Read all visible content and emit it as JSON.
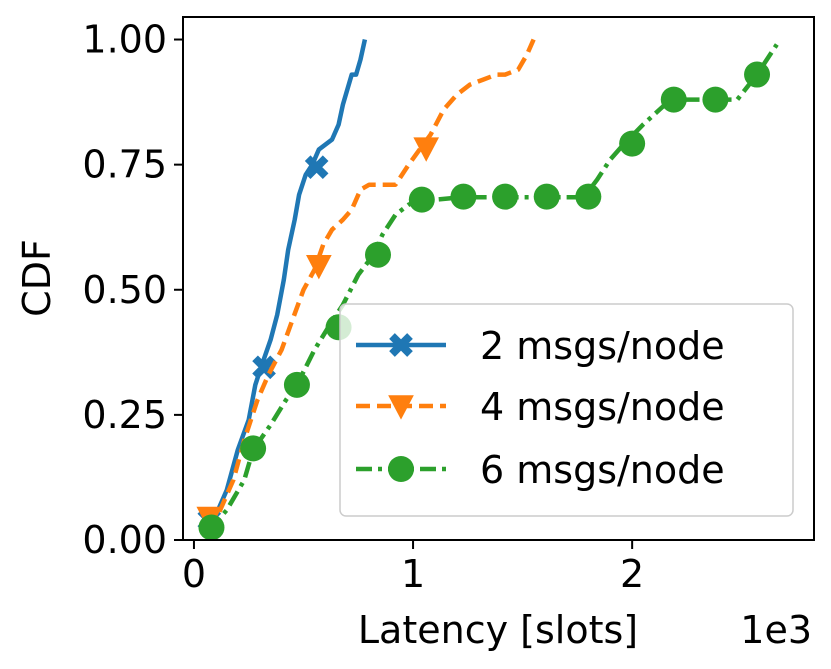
{
  "chart_data": {
    "type": "line",
    "title": "",
    "xlabel": "Latency [slots]",
    "ylabel": "CDF",
    "x_offset_label": "1e3",
    "xlim": [
      -0.05,
      2.83
    ],
    "ylim": [
      0.0,
      1.045
    ],
    "x_ticks": [
      0,
      1,
      2
    ],
    "x_tick_labels": [
      "0",
      "1",
      "2"
    ],
    "y_ticks": [
      0.0,
      0.25,
      0.5,
      0.75,
      1.0
    ],
    "y_tick_labels": [
      "0.00",
      "0.25",
      "0.50",
      "0.75",
      "1.00"
    ],
    "grid": false,
    "legend_position": "lower-right",
    "series": [
      {
        "name": "2 msgs/node",
        "color": "#1f77b4",
        "dash": "solid",
        "marker": "x",
        "x": [
          0.06,
          0.1,
          0.15,
          0.2,
          0.25,
          0.28,
          0.31,
          0.35,
          0.38,
          0.41,
          0.43,
          0.46,
          0.48,
          0.51,
          0.54,
          0.57,
          0.6,
          0.63,
          0.66,
          0.68,
          0.7,
          0.72,
          0.74,
          0.76,
          0.78
        ],
        "y": [
          0.03,
          0.05,
          0.1,
          0.18,
          0.24,
          0.31,
          0.35,
          0.4,
          0.45,
          0.52,
          0.58,
          0.64,
          0.69,
          0.73,
          0.75,
          0.78,
          0.79,
          0.8,
          0.83,
          0.87,
          0.9,
          0.93,
          0.93,
          0.96,
          1.0
        ],
        "marker_x": [
          0.07,
          0.32,
          0.56
        ],
        "marker_y": [
          0.04,
          0.345,
          0.745
        ]
      },
      {
        "name": "4 msgs/node",
        "color": "#ff7f0e",
        "dash": "dashed",
        "marker": "triangle-down",
        "x": [
          0.07,
          0.12,
          0.18,
          0.23,
          0.29,
          0.34,
          0.4,
          0.45,
          0.5,
          0.55,
          0.59,
          0.63,
          0.68,
          0.72,
          0.76,
          0.8,
          0.85,
          0.92,
          0.98,
          1.03,
          1.08,
          1.14,
          1.2,
          1.26,
          1.32,
          1.38,
          1.42,
          1.48,
          1.52,
          1.55
        ],
        "y": [
          0.02,
          0.06,
          0.12,
          0.2,
          0.28,
          0.33,
          0.38,
          0.44,
          0.5,
          0.54,
          0.59,
          0.62,
          0.64,
          0.66,
          0.7,
          0.71,
          0.71,
          0.71,
          0.75,
          0.78,
          0.81,
          0.86,
          0.89,
          0.91,
          0.92,
          0.93,
          0.93,
          0.94,
          0.97,
          1.0
        ],
        "marker_x": [
          0.07,
          0.57,
          1.06
        ],
        "marker_y": [
          0.045,
          0.548,
          0.783
        ]
      },
      {
        "name": "6 msgs/node",
        "color": "#2ca02c",
        "dash": "dashdot",
        "marker": "circle",
        "x": [
          0.07,
          0.15,
          0.23,
          0.27,
          0.35,
          0.42,
          0.47,
          0.55,
          0.62,
          0.68,
          0.75,
          0.82,
          0.86,
          0.92,
          0.98,
          1.03,
          1.1,
          1.22,
          1.4,
          1.59,
          1.78,
          1.84,
          1.9,
          1.96,
          2.05,
          2.15,
          2.25,
          2.37,
          2.48,
          2.57,
          2.66
        ],
        "y": [
          0.02,
          0.06,
          0.12,
          0.18,
          0.23,
          0.28,
          0.31,
          0.38,
          0.43,
          0.47,
          0.53,
          0.57,
          0.61,
          0.65,
          0.67,
          0.68,
          0.68,
          0.685,
          0.685,
          0.685,
          0.685,
          0.72,
          0.76,
          0.79,
          0.83,
          0.87,
          0.88,
          0.88,
          0.88,
          0.93,
          0.99
        ],
        "marker_x": [
          0.08,
          0.27,
          0.47,
          0.66,
          0.84,
          1.04,
          1.23,
          1.42,
          1.61,
          1.8,
          2.0,
          2.19,
          2.38,
          2.57
        ],
        "marker_y": [
          0.025,
          0.183,
          0.31,
          0.425,
          0.57,
          0.68,
          0.686,
          0.686,
          0.686,
          0.686,
          0.792,
          0.88,
          0.88,
          0.93
        ]
      }
    ]
  }
}
